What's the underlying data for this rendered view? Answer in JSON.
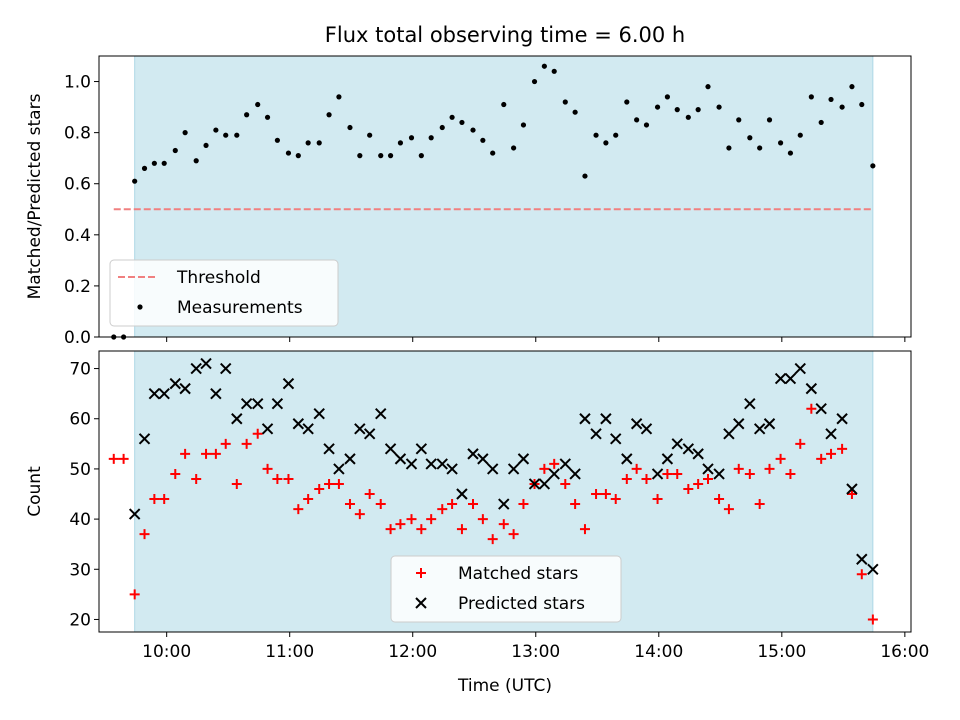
{
  "chart_data": [
    {
      "type": "scatter",
      "title": "Flux total observing time = 6.00 h",
      "xlabel": "",
      "ylabel": "Matched/Predicted stars",
      "ylim": [
        0,
        1.1
      ],
      "yticks": [
        "0.0",
        "0.2",
        "0.4",
        "0.6",
        "0.8",
        "1.0"
      ],
      "xlim": [
        9.45,
        16.05
      ],
      "shaded_span": [
        9.74,
        15.74
      ],
      "shade_color": "#add8e6",
      "threshold": {
        "name": "Threshold",
        "value": 0.5,
        "x_range": [
          9.57,
          15.74
        ],
        "color": "#f08080"
      },
      "legend": {
        "position": "lower-left",
        "entries": [
          "Threshold",
          "Measurements"
        ]
      },
      "series": [
        {
          "name": "Measurements",
          "marker": "dot",
          "color": "#000000",
          "points": [
            [
              9.57,
              0.0
            ],
            [
              9.65,
              0.0
            ],
            [
              9.74,
              0.61
            ],
            [
              9.82,
              0.66
            ],
            [
              9.9,
              0.68
            ],
            [
              9.98,
              0.68
            ],
            [
              10.07,
              0.73
            ],
            [
              10.15,
              0.8
            ],
            [
              10.24,
              0.69
            ],
            [
              10.32,
              0.75
            ],
            [
              10.4,
              0.81
            ],
            [
              10.48,
              0.79
            ],
            [
              10.57,
              0.79
            ],
            [
              10.65,
              0.87
            ],
            [
              10.74,
              0.91
            ],
            [
              10.82,
              0.86
            ],
            [
              10.9,
              0.77
            ],
            [
              10.99,
              0.72
            ],
            [
              11.07,
              0.71
            ],
            [
              11.15,
              0.76
            ],
            [
              11.24,
              0.76
            ],
            [
              11.32,
              0.87
            ],
            [
              11.4,
              0.94
            ],
            [
              11.49,
              0.82
            ],
            [
              11.57,
              0.71
            ],
            [
              11.65,
              0.79
            ],
            [
              11.74,
              0.71
            ],
            [
              11.82,
              0.71
            ],
            [
              11.9,
              0.76
            ],
            [
              11.99,
              0.78
            ],
            [
              12.07,
              0.71
            ],
            [
              12.15,
              0.78
            ],
            [
              12.24,
              0.82
            ],
            [
              12.32,
              0.86
            ],
            [
              12.4,
              0.84
            ],
            [
              12.49,
              0.81
            ],
            [
              12.57,
              0.77
            ],
            [
              12.65,
              0.72
            ],
            [
              12.74,
              0.91
            ],
            [
              12.82,
              0.74
            ],
            [
              12.9,
              0.83
            ],
            [
              12.99,
              1.0
            ],
            [
              13.07,
              1.06
            ],
            [
              13.15,
              1.04
            ],
            [
              13.24,
              0.92
            ],
            [
              13.32,
              0.88
            ],
            [
              13.4,
              0.63
            ],
            [
              13.49,
              0.79
            ],
            [
              13.57,
              0.76
            ],
            [
              13.65,
              0.79
            ],
            [
              13.74,
              0.92
            ],
            [
              13.82,
              0.85
            ],
            [
              13.9,
              0.83
            ],
            [
              13.99,
              0.9
            ],
            [
              14.07,
              0.94
            ],
            [
              14.15,
              0.89
            ],
            [
              14.24,
              0.86
            ],
            [
              14.32,
              0.89
            ],
            [
              14.4,
              0.98
            ],
            [
              14.49,
              0.9
            ],
            [
              14.57,
              0.74
            ],
            [
              14.65,
              0.85
            ],
            [
              14.74,
              0.78
            ],
            [
              14.82,
              0.74
            ],
            [
              14.9,
              0.85
            ],
            [
              14.99,
              0.76
            ],
            [
              15.07,
              0.72
            ],
            [
              15.15,
              0.79
            ],
            [
              15.24,
              0.94
            ],
            [
              15.32,
              0.84
            ],
            [
              15.4,
              0.93
            ],
            [
              15.49,
              0.9
            ],
            [
              15.57,
              0.98
            ],
            [
              15.65,
              0.91
            ],
            [
              15.74,
              0.67
            ]
          ]
        }
      ]
    },
    {
      "type": "scatter",
      "title": "",
      "xlabel": "Time (UTC)",
      "ylabel": "Count",
      "ylim": [
        17.5,
        73.5
      ],
      "yticks": [
        "20",
        "30",
        "40",
        "50",
        "60",
        "70"
      ],
      "xlim": [
        9.45,
        16.05
      ],
      "xticks": [
        "10:00",
        "11:00",
        "12:00",
        "13:00",
        "14:00",
        "15:00",
        "16:00"
      ],
      "shaded_span": [
        9.74,
        15.74
      ],
      "shade_color": "#add8e6",
      "legend": {
        "position": "lower-center",
        "entries": [
          "Matched stars",
          "Predicted stars"
        ]
      },
      "series": [
        {
          "name": "Matched stars",
          "marker": "plus",
          "color": "#ff0000",
          "points": [
            [
              9.57,
              52
            ],
            [
              9.65,
              52
            ],
            [
              9.74,
              25
            ],
            [
              9.82,
              37
            ],
            [
              9.9,
              44
            ],
            [
              9.98,
              44
            ],
            [
              10.07,
              49
            ],
            [
              10.15,
              53
            ],
            [
              10.24,
              48
            ],
            [
              10.32,
              53
            ],
            [
              10.4,
              53
            ],
            [
              10.48,
              55
            ],
            [
              10.57,
              47
            ],
            [
              10.65,
              55
            ],
            [
              10.74,
              57
            ],
            [
              10.82,
              50
            ],
            [
              10.9,
              48
            ],
            [
              10.99,
              48
            ],
            [
              11.07,
              42
            ],
            [
              11.15,
              44
            ],
            [
              11.24,
              46
            ],
            [
              11.32,
              47
            ],
            [
              11.4,
              47
            ],
            [
              11.49,
              43
            ],
            [
              11.57,
              41
            ],
            [
              11.65,
              45
            ],
            [
              11.74,
              43
            ],
            [
              11.82,
              38
            ],
            [
              11.9,
              39
            ],
            [
              11.99,
              40
            ],
            [
              12.07,
              38
            ],
            [
              12.15,
              40
            ],
            [
              12.24,
              42
            ],
            [
              12.32,
              43
            ],
            [
              12.4,
              38
            ],
            [
              12.49,
              43
            ],
            [
              12.57,
              40
            ],
            [
              12.65,
              36
            ],
            [
              12.74,
              39
            ],
            [
              12.82,
              37
            ],
            [
              12.9,
              43
            ],
            [
              12.99,
              47
            ],
            [
              13.07,
              50
            ],
            [
              13.15,
              51
            ],
            [
              13.24,
              47
            ],
            [
              13.32,
              43
            ],
            [
              13.4,
              38
            ],
            [
              13.49,
              45
            ],
            [
              13.57,
              45
            ],
            [
              13.65,
              44
            ],
            [
              13.74,
              48
            ],
            [
              13.82,
              50
            ],
            [
              13.9,
              48
            ],
            [
              13.99,
              44
            ],
            [
              14.07,
              49
            ],
            [
              14.15,
              49
            ],
            [
              14.24,
              46
            ],
            [
              14.32,
              47
            ],
            [
              14.4,
              48
            ],
            [
              14.49,
              44
            ],
            [
              14.57,
              42
            ],
            [
              14.65,
              50
            ],
            [
              14.74,
              49
            ],
            [
              14.82,
              43
            ],
            [
              14.9,
              50
            ],
            [
              14.99,
              52
            ],
            [
              15.07,
              49
            ],
            [
              15.15,
              55
            ],
            [
              15.24,
              62
            ],
            [
              15.32,
              52
            ],
            [
              15.4,
              53
            ],
            [
              15.49,
              54
            ],
            [
              15.57,
              45
            ],
            [
              15.65,
              29
            ],
            [
              15.74,
              20
            ]
          ]
        },
        {
          "name": "Predicted stars",
          "marker": "x",
          "color": "#000000",
          "points": [
            [
              9.74,
              41
            ],
            [
              9.82,
              56
            ],
            [
              9.9,
              65
            ],
            [
              9.98,
              65
            ],
            [
              10.07,
              67
            ],
            [
              10.15,
              66
            ],
            [
              10.24,
              70
            ],
            [
              10.32,
              71
            ],
            [
              10.4,
              65
            ],
            [
              10.48,
              70
            ],
            [
              10.57,
              60
            ],
            [
              10.65,
              63
            ],
            [
              10.74,
              63
            ],
            [
              10.82,
              58
            ],
            [
              10.9,
              63
            ],
            [
              10.99,
              67
            ],
            [
              11.07,
              59
            ],
            [
              11.15,
              58
            ],
            [
              11.24,
              61
            ],
            [
              11.32,
              54
            ],
            [
              11.4,
              50
            ],
            [
              11.49,
              52
            ],
            [
              11.57,
              58
            ],
            [
              11.65,
              57
            ],
            [
              11.74,
              61
            ],
            [
              11.82,
              54
            ],
            [
              11.9,
              52
            ],
            [
              11.99,
              51
            ],
            [
              12.07,
              54
            ],
            [
              12.15,
              51
            ],
            [
              12.24,
              51
            ],
            [
              12.32,
              50
            ],
            [
              12.4,
              45
            ],
            [
              12.49,
              53
            ],
            [
              12.57,
              52
            ],
            [
              12.65,
              50
            ],
            [
              12.74,
              43
            ],
            [
              12.82,
              50
            ],
            [
              12.9,
              52
            ],
            [
              12.99,
              47
            ],
            [
              13.07,
              47
            ],
            [
              13.15,
              49
            ],
            [
              13.24,
              51
            ],
            [
              13.32,
              49
            ],
            [
              13.4,
              60
            ],
            [
              13.49,
              57
            ],
            [
              13.57,
              60
            ],
            [
              13.65,
              56
            ],
            [
              13.74,
              52
            ],
            [
              13.82,
              59
            ],
            [
              13.9,
              58
            ],
            [
              13.99,
              49
            ],
            [
              14.07,
              52
            ],
            [
              14.15,
              55
            ],
            [
              14.24,
              54
            ],
            [
              14.32,
              53
            ],
            [
              14.4,
              50
            ],
            [
              14.49,
              49
            ],
            [
              14.57,
              57
            ],
            [
              14.65,
              59
            ],
            [
              14.74,
              63
            ],
            [
              14.82,
              58
            ],
            [
              14.9,
              59
            ],
            [
              14.99,
              68
            ],
            [
              15.07,
              68
            ],
            [
              15.15,
              70
            ],
            [
              15.24,
              66
            ],
            [
              15.32,
              62
            ],
            [
              15.4,
              57
            ],
            [
              15.49,
              60
            ],
            [
              15.57,
              46
            ],
            [
              15.65,
              32
            ],
            [
              15.74,
              30
            ]
          ]
        }
      ]
    }
  ]
}
